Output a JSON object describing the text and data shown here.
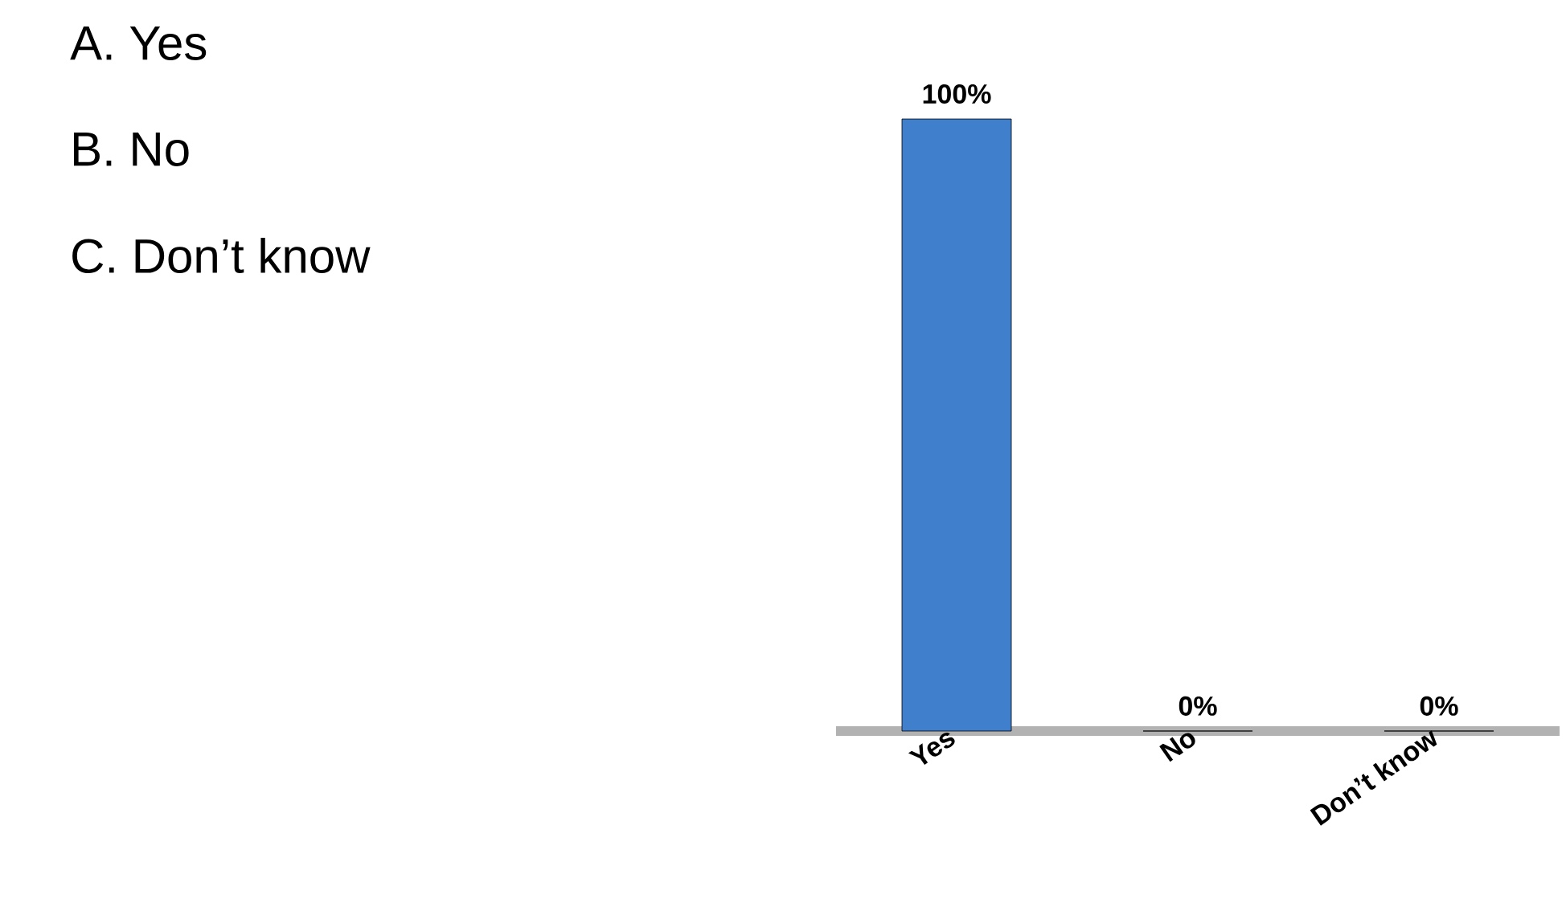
{
  "chart_data": {
    "type": "bar",
    "categories": [
      "Yes",
      "No",
      "Don’t know"
    ],
    "values": [
      100,
      0,
      0
    ],
    "colors": [
      "#3f7fcc",
      "#e0504a",
      "#9ccc4a"
    ],
    "value_labels": [
      "100%",
      "0%",
      "0%"
    ],
    "annotations": [
      "A.  Yes",
      "B.  No",
      "C.  Don’t know"
    ]
  }
}
